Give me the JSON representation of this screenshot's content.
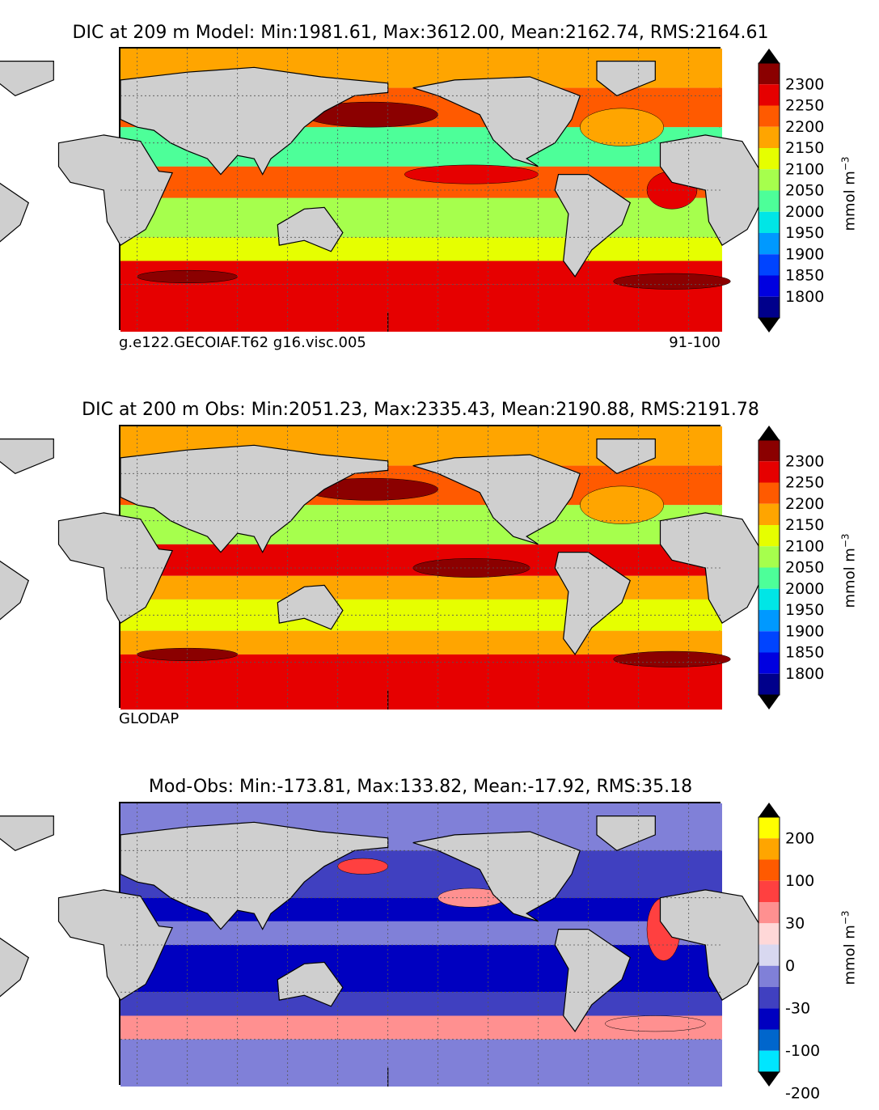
{
  "panels": [
    {
      "id": "model",
      "title": "DIC at 209 m Model: Min:1981.61, Max:3612.00, Mean:2162.74, RMS:2164.61",
      "footer_left": "g.e122.GECOIAF.T62 g16.visc.005",
      "footer_right": "91-100",
      "units": "mmol m",
      "units_exp": "−3",
      "colorbar": {
        "labels": [
          "2300",
          "2250",
          "2200",
          "2150",
          "2100",
          "2050",
          "2000",
          "1950",
          "1900",
          "1850",
          "1800"
        ],
        "colors": [
          "#8b0000",
          "#e60000",
          "#ff5a00",
          "#ffa500",
          "#e6ff00",
          "#a6ff4d",
          "#4dff99",
          "#00e6e6",
          "#0099ff",
          "#0044ff",
          "#0000e0",
          "#00008b"
        ]
      },
      "bands": [
        {
          "lat_min": 65,
          "lat_max": 90,
          "color": "#ffa500"
        },
        {
          "lat_min": 40,
          "lat_max": 65,
          "color": "#ff5a00"
        },
        {
          "lat_min": 15,
          "lat_max": 40,
          "color": "#4dff99"
        },
        {
          "lat_min": -5,
          "lat_max": 15,
          "color": "#ff5a00"
        },
        {
          "lat_min": -30,
          "lat_max": -5,
          "color": "#a6ff4d"
        },
        {
          "lat_min": -45,
          "lat_max": -30,
          "color": "#e6ff00"
        },
        {
          "lat_min": -60,
          "lat_max": -45,
          "color": "#e60000"
        },
        {
          "lat_min": -90,
          "lat_max": -60,
          "color": "#e60000"
        }
      ],
      "patches": [
        {
          "lon": 170,
          "lat": 48,
          "rx": 40,
          "ry": 8,
          "color": "#8b0000"
        },
        {
          "lon": -40,
          "lat": 40,
          "rx": 25,
          "ry": 12,
          "color": "#ffa500"
        },
        {
          "lon": -10,
          "lat": 0,
          "rx": 15,
          "ry": 12,
          "color": "#e60000"
        },
        {
          "lon": -130,
          "lat": 10,
          "rx": 40,
          "ry": 6,
          "color": "#e60000"
        },
        {
          "lon": 60,
          "lat": -55,
          "rx": 30,
          "ry": 4,
          "color": "#8b0000"
        },
        {
          "lon": -10,
          "lat": -58,
          "rx": 35,
          "ry": 5,
          "color": "#8b0000"
        }
      ]
    },
    {
      "id": "obs",
      "title": "DIC at 200 m Obs: Min:2051.23, Max:2335.43, Mean:2190.88, RMS:2191.78",
      "footer_left": "GLODAP",
      "footer_right": "",
      "units": "mmol m",
      "units_exp": "−3",
      "colorbar": {
        "labels": [
          "2300",
          "2250",
          "2200",
          "2150",
          "2100",
          "2050",
          "2000",
          "1950",
          "1900",
          "1850",
          "1800"
        ],
        "colors": [
          "#8b0000",
          "#e60000",
          "#ff5a00",
          "#ffa500",
          "#e6ff00",
          "#a6ff4d",
          "#4dff99",
          "#00e6e6",
          "#0099ff",
          "#0044ff",
          "#0000e0",
          "#00008b"
        ]
      },
      "bands": [
        {
          "lat_min": 65,
          "lat_max": 90,
          "color": "#ffa500"
        },
        {
          "lat_min": 40,
          "lat_max": 65,
          "color": "#ff5a00"
        },
        {
          "lat_min": 15,
          "lat_max": 40,
          "color": "#a6ff4d"
        },
        {
          "lat_min": -5,
          "lat_max": 15,
          "color": "#e60000"
        },
        {
          "lat_min": -20,
          "lat_max": -5,
          "color": "#ffa500"
        },
        {
          "lat_min": -40,
          "lat_max": -20,
          "color": "#e6ff00"
        },
        {
          "lat_min": -55,
          "lat_max": -40,
          "color": "#ffa500"
        },
        {
          "lat_min": -90,
          "lat_max": -55,
          "color": "#e60000"
        }
      ],
      "patches": [
        {
          "lon": 170,
          "lat": 50,
          "rx": 40,
          "ry": 7,
          "color": "#8b0000"
        },
        {
          "lon": -130,
          "lat": 0,
          "rx": 35,
          "ry": 6,
          "color": "#8b0000"
        },
        {
          "lon": -40,
          "lat": 40,
          "rx": 25,
          "ry": 12,
          "color": "#ffa500"
        },
        {
          "lon": 60,
          "lat": -55,
          "rx": 30,
          "ry": 4,
          "color": "#8b0000"
        },
        {
          "lon": -10,
          "lat": -58,
          "rx": 35,
          "ry": 5,
          "color": "#8b0000"
        }
      ]
    },
    {
      "id": "diff",
      "title": "Mod-Obs: Min:-173.81, Max:133.82, Mean:-17.92, RMS:35.18",
      "footer_left": "",
      "footer_right": "",
      "units": "mmol m",
      "units_exp": "−3",
      "colorbar": {
        "labels": [
          "200",
          "100",
          "30",
          "0",
          "-30",
          "-100",
          "-200"
        ],
        "colors": [
          "#ffff00",
          "#ffa500",
          "#ff5a00",
          "#ff4040",
          "#ff9090",
          "#ffd8d8",
          "#d8d8f0",
          "#8080d8",
          "#4040c0",
          "#0000c0",
          "#0066cc",
          "#00e6ff"
        ]
      },
      "bands": [
        {
          "lat_min": 60,
          "lat_max": 90,
          "color": "#8080d8"
        },
        {
          "lat_min": 30,
          "lat_max": 60,
          "color": "#4040c0"
        },
        {
          "lat_min": 15,
          "lat_max": 30,
          "color": "#0000c0"
        },
        {
          "lat_min": 0,
          "lat_max": 15,
          "color": "#8080d8"
        },
        {
          "lat_min": -30,
          "lat_max": 0,
          "color": "#0000c0"
        },
        {
          "lat_min": -45,
          "lat_max": -30,
          "color": "#4040c0"
        },
        {
          "lat_min": -60,
          "lat_max": -45,
          "color": "#ff9090"
        },
        {
          "lat_min": -90,
          "lat_max": -60,
          "color": "#8080d8"
        }
      ],
      "patches": [
        {
          "lon": 165,
          "lat": 50,
          "rx": 15,
          "ry": 5,
          "color": "#ff4040"
        },
        {
          "lon": -15,
          "lat": 10,
          "rx": 10,
          "ry": 20,
          "color": "#ff4040"
        },
        {
          "lon": -130,
          "lat": 30,
          "rx": 20,
          "ry": 6,
          "color": "#ff9090"
        },
        {
          "lon": -20,
          "lat": -50,
          "rx": 30,
          "ry": 5,
          "color": "#ff9090"
        }
      ]
    }
  ]
}
